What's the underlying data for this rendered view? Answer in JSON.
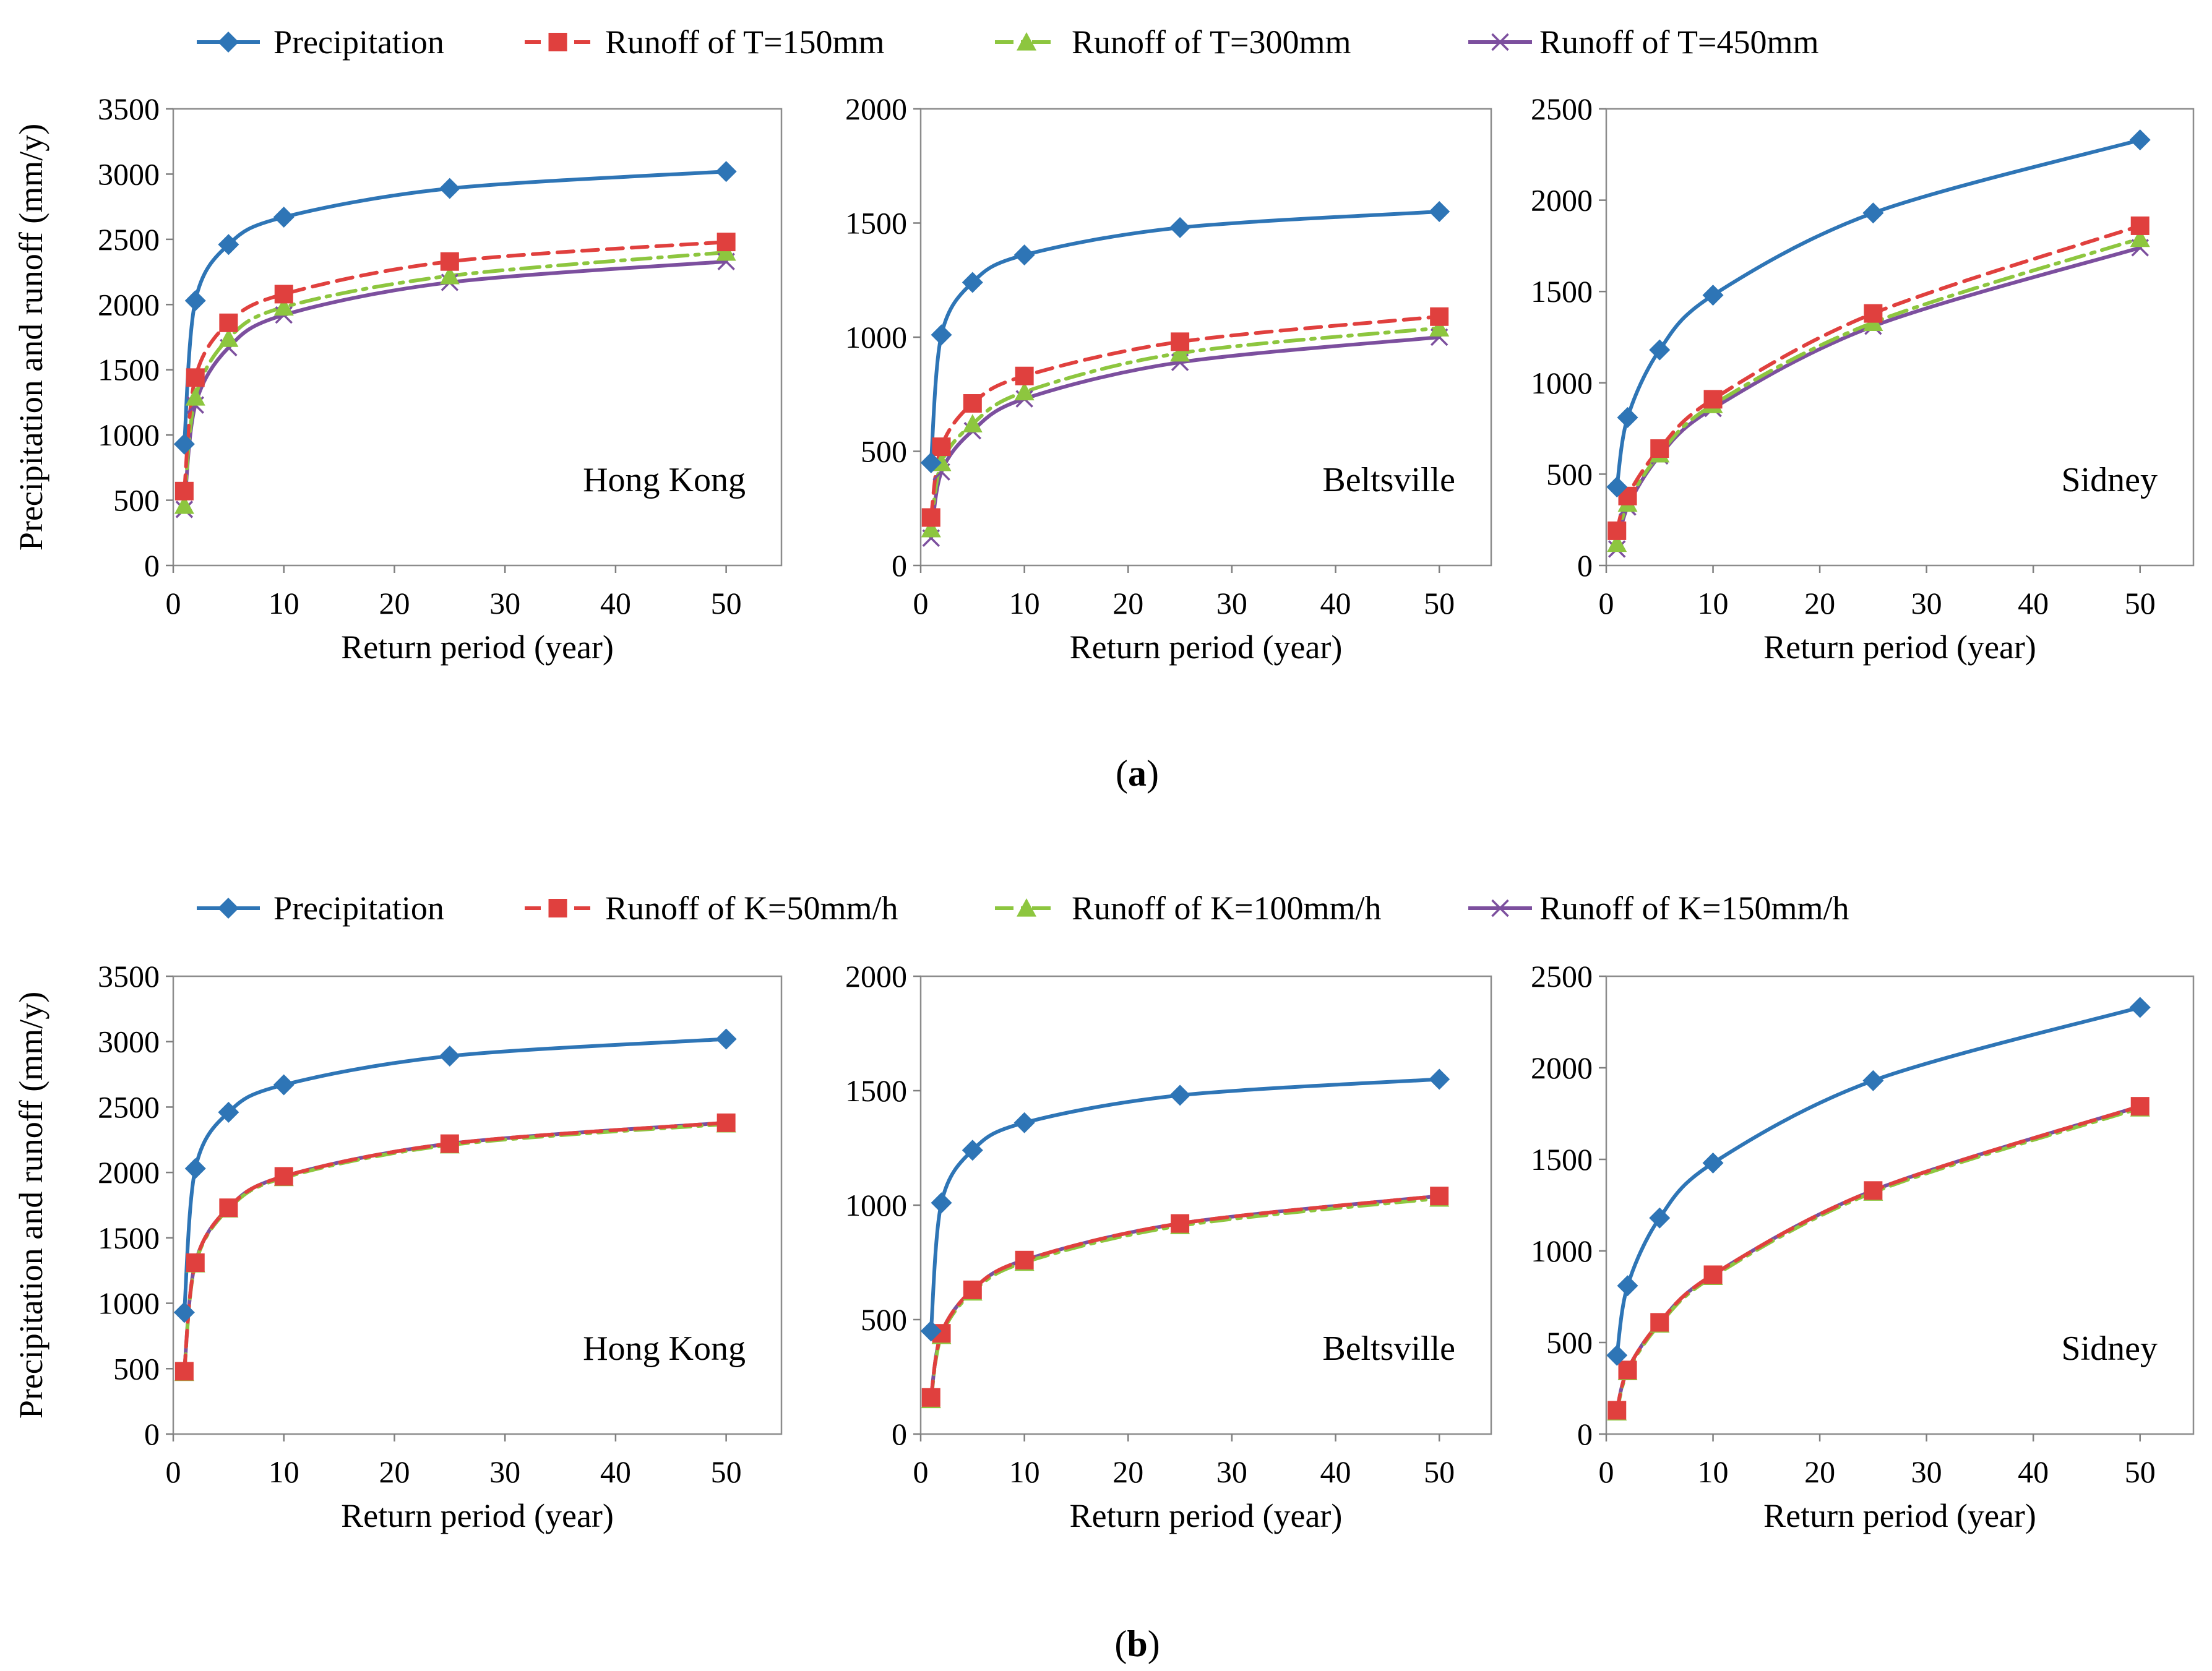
{
  "figure": {
    "colors": {
      "precipitation": "#2e75b6",
      "run1": "#e0403e",
      "run2": "#8dc63f",
      "run3": "#7c4f9e",
      "axis": "#7f7f7f",
      "frame": "#8c8c8c"
    },
    "marker_names": [
      "diamond",
      "square",
      "triangle",
      "cross"
    ],
    "panel_labels": [
      "a",
      "b"
    ]
  },
  "chart_data": [
    {
      "type": "line",
      "group": "a",
      "title": "Hong Kong",
      "xlabel": "Return period (year)",
      "ylabel": "Precipitation and runoff (mm/y)",
      "xlim": [
        0,
        55
      ],
      "ylim": [
        0,
        3500
      ],
      "xticks": [
        0,
        10,
        20,
        30,
        40,
        50
      ],
      "yticks": [
        0,
        500,
        1000,
        1500,
        2000,
        2500,
        3000,
        3500
      ],
      "grid": false,
      "legend": "top",
      "x": [
        1,
        2,
        5,
        10,
        25,
        50
      ],
      "series": [
        {
          "name": "Precipitation",
          "values": [
            930,
            2030,
            2460,
            2670,
            2890,
            3020
          ]
        },
        {
          "name": "Runoff of T=150mm",
          "values": [
            570,
            1440,
            1860,
            2080,
            2330,
            2480
          ]
        },
        {
          "name": "Runoff of T=300mm",
          "values": [
            460,
            1290,
            1740,
            1980,
            2220,
            2400
          ]
        },
        {
          "name": "Runoff of T=450mm",
          "values": [
            430,
            1230,
            1670,
            1920,
            2170,
            2330
          ]
        }
      ]
    },
    {
      "type": "line",
      "group": "a",
      "title": "Beltsville",
      "xlabel": "Return period (year)",
      "ylabel": "",
      "xlim": [
        0,
        55
      ],
      "ylim": [
        0,
        2000
      ],
      "xticks": [
        0,
        10,
        20,
        30,
        40,
        50
      ],
      "yticks": [
        0,
        500,
        1000,
        1500,
        2000
      ],
      "grid": false,
      "legend": "top",
      "x": [
        1,
        2,
        5,
        10,
        25,
        50
      ],
      "series": [
        {
          "name": "Precipitation",
          "values": [
            450,
            1010,
            1240,
            1360,
            1480,
            1550
          ]
        },
        {
          "name": "Runoff of T=150mm",
          "values": [
            210,
            520,
            710,
            830,
            980,
            1090
          ]
        },
        {
          "name": "Runoff of T=300mm",
          "values": [
            160,
            450,
            620,
            760,
            930,
            1040
          ]
        },
        {
          "name": "Runoff of T=450mm",
          "values": [
            120,
            410,
            590,
            730,
            890,
            1000
          ]
        }
      ]
    },
    {
      "type": "line",
      "group": "a",
      "title": "Sidney",
      "xlabel": "Return period (year)",
      "ylabel": "",
      "xlim": [
        0,
        55
      ],
      "ylim": [
        0,
        2500
      ],
      "xticks": [
        0,
        10,
        20,
        30,
        40,
        50
      ],
      "yticks": [
        0,
        500,
        1000,
        1500,
        2000,
        2500
      ],
      "grid": false,
      "legend": "top",
      "x": [
        1,
        2,
        5,
        10,
        25,
        50
      ],
      "series": [
        {
          "name": "Precipitation",
          "values": [
            430,
            810,
            1180,
            1480,
            1930,
            2330
          ]
        },
        {
          "name": "Runoff of T=150mm",
          "values": [
            190,
            380,
            640,
            910,
            1380,
            1860
          ]
        },
        {
          "name": "Runoff of T=300mm",
          "values": [
            120,
            340,
            610,
            880,
            1330,
            1790
          ]
        },
        {
          "name": "Runoff of T=450mm",
          "values": [
            90,
            320,
            600,
            860,
            1310,
            1740
          ]
        }
      ]
    },
    {
      "type": "line",
      "group": "b",
      "title": "Hong Kong",
      "xlabel": "Return period (year)",
      "ylabel": "Precipitation and runoff (mm/y)",
      "xlim": [
        0,
        55
      ],
      "ylim": [
        0,
        3500
      ],
      "xticks": [
        0,
        10,
        20,
        30,
        40,
        50
      ],
      "yticks": [
        0,
        500,
        1000,
        1500,
        2000,
        2500,
        3000,
        3500
      ],
      "grid": false,
      "legend": "top",
      "x": [
        1,
        2,
        5,
        10,
        25,
        50
      ],
      "series": [
        {
          "name": "Precipitation",
          "values": [
            930,
            2030,
            2460,
            2670,
            2890,
            3020
          ]
        },
        {
          "name": "Runoff of K=50mm/h",
          "values": [
            480,
            1310,
            1730,
            1970,
            2220,
            2380
          ]
        },
        {
          "name": "Runoff of K=100mm/h",
          "values": [
            470,
            1300,
            1720,
            1960,
            2210,
            2370
          ]
        },
        {
          "name": "Runoff of K=150mm/h",
          "values": [
            480,
            1310,
            1730,
            1970,
            2220,
            2380
          ]
        }
      ]
    },
    {
      "type": "line",
      "group": "b",
      "title": "Beltsville",
      "xlabel": "Return period (year)",
      "ylabel": "",
      "xlim": [
        0,
        55
      ],
      "ylim": [
        0,
        2000
      ],
      "xticks": [
        0,
        10,
        20,
        30,
        40,
        50
      ],
      "yticks": [
        0,
        500,
        1000,
        1500,
        2000
      ],
      "grid": false,
      "legend": "top",
      "x": [
        1,
        2,
        5,
        10,
        25,
        50
      ],
      "series": [
        {
          "name": "Precipitation",
          "values": [
            450,
            1010,
            1240,
            1360,
            1480,
            1550
          ]
        },
        {
          "name": "Runoff of K=50mm/h",
          "values": [
            160,
            440,
            630,
            760,
            920,
            1040
          ]
        },
        {
          "name": "Runoff of K=100mm/h",
          "values": [
            150,
            430,
            620,
            750,
            910,
            1030
          ]
        },
        {
          "name": "Runoff of K=150mm/h",
          "values": [
            160,
            440,
            630,
            760,
            920,
            1040
          ]
        }
      ]
    },
    {
      "type": "line",
      "group": "b",
      "title": "Sidney",
      "xlabel": "Return period (year)",
      "ylabel": "",
      "xlim": [
        0,
        55
      ],
      "ylim": [
        0,
        2500
      ],
      "xticks": [
        0,
        10,
        20,
        30,
        40,
        50
      ],
      "yticks": [
        0,
        500,
        1000,
        1500,
        2000,
        2500
      ],
      "grid": false,
      "legend": "top",
      "x": [
        1,
        2,
        5,
        10,
        25,
        50
      ],
      "series": [
        {
          "name": "Precipitation",
          "values": [
            430,
            810,
            1180,
            1480,
            1930,
            2330
          ]
        },
        {
          "name": "Runoff of K=50mm/h",
          "values": [
            130,
            350,
            610,
            870,
            1330,
            1790
          ]
        },
        {
          "name": "Runoff of K=100mm/h",
          "values": [
            120,
            340,
            600,
            860,
            1320,
            1780
          ]
        },
        {
          "name": "Runoff of K=150mm/h",
          "values": [
            130,
            350,
            610,
            870,
            1330,
            1790
          ]
        }
      ]
    }
  ]
}
